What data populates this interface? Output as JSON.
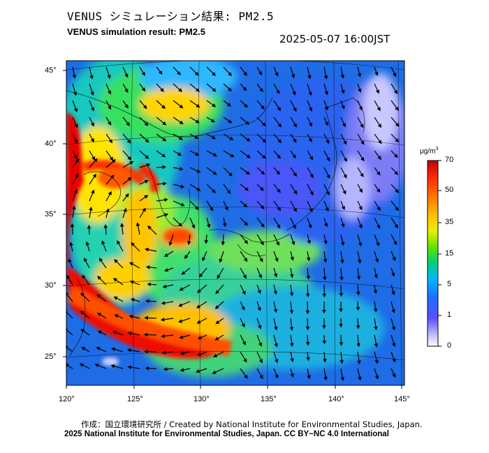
{
  "header": {
    "title_jp": "VENUS シミュレーション結果: PM2.5",
    "title_en": "VENUS simulation result: PM2.5",
    "timestamp": "2025-05-07 16:00JST"
  },
  "map": {
    "lat_ticks": [
      "45°",
      "40°",
      "35°",
      "30°",
      "25°"
    ],
    "lon_ticks": [
      "120°",
      "125°",
      "130°",
      "135°",
      "140°",
      "145°"
    ]
  },
  "colorbar": {
    "unit_base": "μg/m",
    "unit_exp": "3",
    "levels": [
      "70",
      "50",
      "35",
      "15",
      "5",
      "1",
      "0"
    ],
    "colors": [
      "#d60000",
      "#ff3a00",
      "#ffb000",
      "#f5f000",
      "#4fe000",
      "#00c8a0",
      "#00b4ff",
      "#2a6cff",
      "#4a4cff",
      "#9fa0ff",
      "#ffffff"
    ]
  },
  "footer": {
    "credit": "作成：国立環境研究所 / Created by National Institute for Environmental Studies, Japan.",
    "copyright": "2025 National Institute for Environmental Studies, Japan. CC BY−NC 4.0 International"
  }
}
